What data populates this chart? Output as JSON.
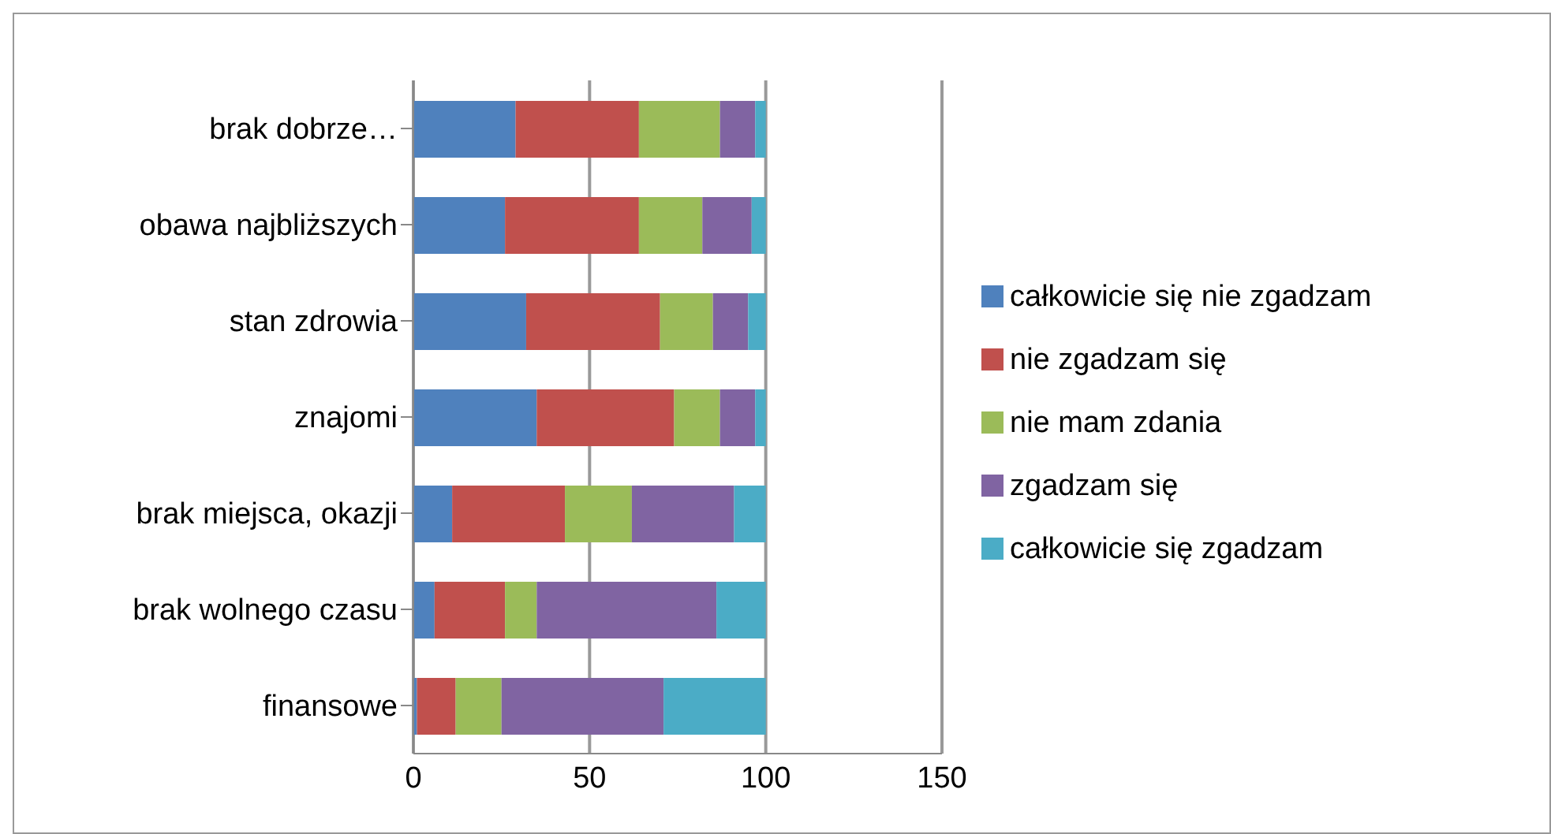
{
  "chart_data": {
    "type": "bar",
    "orientation": "horizontal",
    "stacked": true,
    "categories": [
      "brak dobrze…",
      "obawa najbliższych",
      "stan zdrowia",
      "znajomi",
      "brak miejsca, okazji",
      "brak wolnego czasu",
      "finansowe"
    ],
    "series": [
      {
        "name": "całkowicie się nie zgadzam",
        "color": "#4f81bd",
        "values": [
          29,
          26,
          32,
          35,
          11,
          6,
          1
        ]
      },
      {
        "name": "nie zgadzam się",
        "color": "#c0504d",
        "values": [
          35,
          38,
          38,
          39,
          32,
          20,
          11
        ]
      },
      {
        "name": "nie mam zdania",
        "color": "#9bbb59",
        "values": [
          23,
          18,
          15,
          13,
          19,
          9,
          13
        ]
      },
      {
        "name": "zgadzam się",
        "color": "#8064a2",
        "values": [
          10,
          14,
          10,
          10,
          29,
          51,
          46
        ]
      },
      {
        "name": "całkowicie się zgadzam",
        "color": "#4bacc6",
        "values": [
          3,
          4,
          5,
          3,
          9,
          14,
          29
        ]
      }
    ],
    "xlim": [
      0,
      150
    ],
    "xticks": [
      0,
      50,
      100,
      150
    ],
    "grid": "x",
    "legend": "right"
  }
}
